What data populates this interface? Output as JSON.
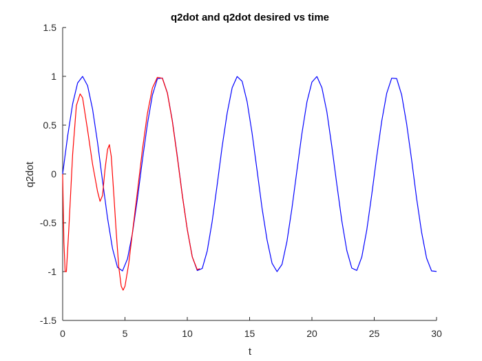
{
  "chart_data": {
    "type": "line",
    "title": "q2dot and q2dot desired vs time",
    "xlabel": "t",
    "ylabel": "q2dot",
    "xlim": [
      0,
      30
    ],
    "ylim": [
      -1.5,
      1.5
    ],
    "xticks": [
      0,
      5,
      10,
      15,
      20,
      25,
      30
    ],
    "yticks": [
      -1.5,
      -1,
      -0.5,
      0,
      0.5,
      1,
      1.5
    ],
    "xtick_labels": [
      "0",
      "5",
      "10",
      "15",
      "20",
      "25",
      "30"
    ],
    "ytick_labels": [
      "-1.5",
      "-1",
      "-0.5",
      "0",
      "0.5",
      "1",
      "1.5"
    ],
    "grid": false,
    "legend": "none",
    "series": [
      {
        "color": "#0000ff",
        "x": [
          0,
          0.4,
          0.8,
          1.2,
          1.6,
          2.0,
          2.4,
          2.8,
          3.2,
          3.6,
          4.0,
          4.4,
          4.8,
          5.2,
          5.6,
          6.0,
          6.4,
          6.8,
          7.2,
          7.6,
          8.0,
          8.4,
          8.8,
          9.2,
          9.6,
          10.0,
          10.4,
          10.8,
          11.2,
          11.6,
          12.0,
          12.4,
          12.8,
          13.2,
          13.6,
          14.0,
          14.4,
          14.8,
          15.2,
          15.6,
          16.0,
          16.4,
          16.8,
          17.2,
          17.6,
          18.0,
          18.4,
          18.8,
          19.2,
          19.6,
          20.0,
          20.4,
          20.8,
          21.2,
          21.6,
          22.0,
          22.4,
          22.8,
          23.2,
          23.6,
          24.0,
          24.4,
          24.8,
          25.2,
          25.6,
          26.0,
          26.4,
          26.8,
          27.2,
          27.6,
          28.0,
          28.4,
          28.8,
          29.2,
          29.6,
          30.0
        ],
        "y": [
          0,
          0.389,
          0.717,
          0.932,
          0.999,
          0.904,
          0.664,
          0.322,
          -0.072,
          -0.451,
          -0.764,
          -0.956,
          -0.993,
          -0.87,
          -0.607,
          -0.253,
          0.143,
          0.511,
          0.807,
          0.975,
          0.983,
          0.831,
          0.547,
          0.181,
          -0.215,
          -0.569,
          -0.848,
          -0.989,
          -0.968,
          -0.788,
          -0.483,
          -0.109,
          0.284,
          0.624,
          0.883,
          0.998,
          0.949,
          0.74,
          0.417,
          0.036,
          -0.352,
          -0.675,
          -0.914,
          -1.0,
          -0.926,
          -0.688,
          -0.348,
          0.038,
          0.417,
          0.738,
          0.941,
          0.998,
          0.884,
          0.636,
          0.279,
          -0.109,
          -0.481,
          -0.784,
          -0.964,
          -0.988,
          -0.851,
          -0.575,
          -0.212,
          0.179,
          0.54,
          0.826,
          0.981,
          0.977,
          0.81,
          0.513,
          0.145,
          -0.251,
          -0.597,
          -0.862,
          -0.993,
          -0.998
        ]
      },
      {
        "color": "#ff0000",
        "x": [
          0,
          0.1,
          0.2,
          0.3,
          0.5,
          0.8,
          1.1,
          1.4,
          1.6,
          2.0,
          2.4,
          2.8,
          3.0,
          3.2,
          3.4,
          3.6,
          3.75,
          3.9,
          4.1,
          4.3,
          4.5,
          4.7,
          4.85,
          5.0,
          5.3,
          5.6,
          6.0,
          6.4,
          6.8,
          7.2,
          7.6,
          8.0,
          8.4,
          8.8,
          9.2,
          9.6,
          10.0,
          10.4,
          10.8,
          11.0
        ],
        "y": [
          0,
          -0.7,
          -1.0,
          -1.0,
          -0.55,
          0.2,
          0.7,
          0.82,
          0.78,
          0.45,
          0.1,
          -0.18,
          -0.28,
          -0.22,
          0.05,
          0.25,
          0.3,
          0.18,
          -0.2,
          -0.6,
          -0.95,
          -1.15,
          -1.19,
          -1.15,
          -0.92,
          -0.6,
          -0.18,
          0.25,
          0.62,
          0.88,
          0.99,
          0.98,
          0.83,
          0.54,
          0.17,
          -0.22,
          -0.57,
          -0.85,
          -0.98,
          -0.97
        ]
      }
    ]
  }
}
